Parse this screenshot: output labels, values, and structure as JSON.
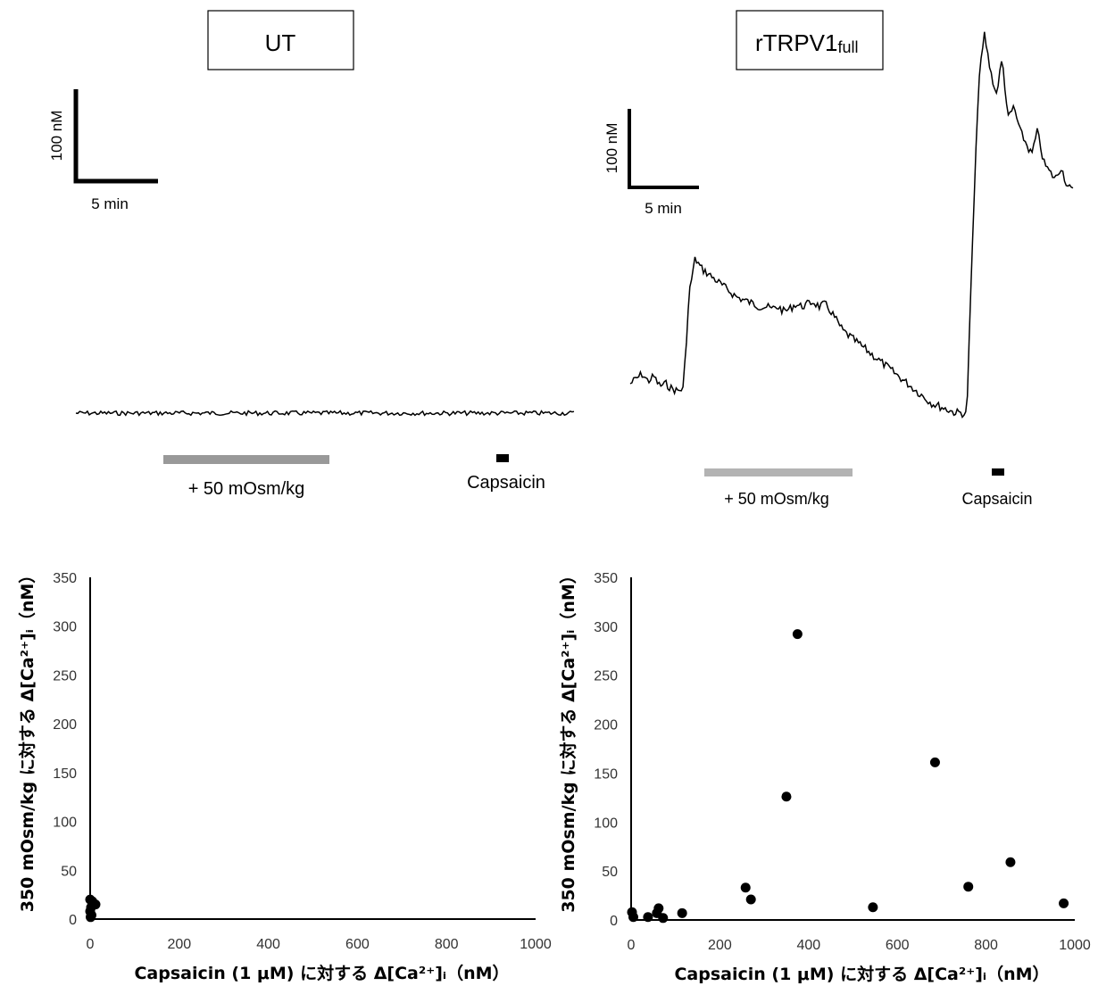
{
  "chart_data": [
    {
      "type": "line",
      "panel": "trace",
      "title": "UT",
      "scalebar": {
        "y_label": "100 nM",
        "x_label": "5 min"
      },
      "annotations": [
        {
          "label": "+ 50 mOsm/kg",
          "color": "#999999"
        },
        {
          "label": "Capsaicin",
          "color": "#000000"
        }
      ],
      "series": [
        {
          "values": [
            0,
            0,
            0,
            0,
            0,
            0,
            0,
            0,
            0,
            0,
            0,
            0,
            0,
            0,
            0,
            0,
            0,
            0,
            0,
            0
          ]
        }
      ]
    },
    {
      "type": "line",
      "panel": "trace",
      "title": "rTRPV1",
      "title_sub": "full",
      "scalebar": {
        "y_label": "100 nM",
        "x_label": "5 min"
      },
      "annotations": [
        {
          "label": "+ 50 mOsm/kg",
          "color": "#b3b3b3"
        },
        {
          "label": "Capsaicin",
          "color": "#000000"
        }
      ],
      "series": [
        {
          "values": [
            0.0,
            0.02,
            0.04,
            0.01,
            0.03,
            -0.01,
            0.0,
            -0.02,
            -0.03,
            -0.02,
            0.38,
            0.52,
            0.48,
            0.46,
            0.44,
            0.42,
            0.4,
            0.38,
            0.36,
            0.35,
            0.34,
            0.33,
            0.32,
            0.32,
            0.31,
            0.32,
            0.3,
            0.31,
            0.33,
            0.32,
            0.33,
            0.34,
            0.32,
            0.33,
            0.3,
            0.26,
            0.22,
            0.2,
            0.18,
            0.16,
            0.14,
            0.12,
            0.1,
            0.08,
            0.06,
            0.04,
            0.02,
            0.0,
            -0.02,
            -0.04,
            -0.06,
            -0.08,
            -0.09,
            -0.1,
            -0.11,
            -0.12,
            -0.12,
            -0.13,
            0.6,
            1.25,
            1.45,
            1.3,
            1.2,
            1.35,
            1.1,
            1.15,
            1.05,
            1.0,
            0.95,
            1.05,
            0.92,
            0.88,
            0.85,
            0.9,
            0.82,
            0.8
          ]
        }
      ]
    },
    {
      "type": "scatter",
      "panel": "UT",
      "xlabel": "Capsaicin (1 μM) に対する Δ[Ca²⁺]ᵢ（nM）",
      "ylabel": "350 mOsm/kg に対する Δ[Ca²⁺]ᵢ（nM）",
      "xlim": [
        0,
        1000
      ],
      "ylim": [
        0,
        350
      ],
      "xticks": [
        "0",
        "200",
        "400",
        "600",
        "800",
        "1000"
      ],
      "yticks": [
        "0",
        "50",
        "100",
        "150",
        "200",
        "250",
        "300",
        "350"
      ],
      "points": [
        {
          "x": 0,
          "y": 20
        },
        {
          "x": 2,
          "y": 12
        },
        {
          "x": 0,
          "y": 8
        },
        {
          "x": 3,
          "y": 4
        },
        {
          "x": 1,
          "y": 2
        },
        {
          "x": 12,
          "y": 15
        },
        {
          "x": 5,
          "y": 18
        }
      ]
    },
    {
      "type": "scatter",
      "panel": "rTRPV1full",
      "xlabel": "Capsaicin (1 μM) に対する Δ[Ca²⁺]ᵢ（nM）",
      "ylabel": "350 mOsm/kg に対する Δ[Ca²⁺]ᵢ（nM）",
      "xlim": [
        0,
        1000
      ],
      "ylim": [
        0,
        350
      ],
      "xticks": [
        "0",
        "200",
        "400",
        "600",
        "800",
        "1000"
      ],
      "yticks": [
        "0",
        "50",
        "100",
        "150",
        "200",
        "250",
        "300",
        "350"
      ],
      "points": [
        {
          "x": 2,
          "y": 8
        },
        {
          "x": 5,
          "y": 3
        },
        {
          "x": 38,
          "y": 3
        },
        {
          "x": 58,
          "y": 7
        },
        {
          "x": 62,
          "y": 12
        },
        {
          "x": 72,
          "y": 2
        },
        {
          "x": 115,
          "y": 7
        },
        {
          "x": 258,
          "y": 33
        },
        {
          "x": 270,
          "y": 21
        },
        {
          "x": 350,
          "y": 126
        },
        {
          "x": 375,
          "y": 292
        },
        {
          "x": 545,
          "y": 13
        },
        {
          "x": 685,
          "y": 161
        },
        {
          "x": 760,
          "y": 34
        },
        {
          "x": 855,
          "y": 59
        },
        {
          "x": 975,
          "y": 17
        }
      ]
    }
  ]
}
